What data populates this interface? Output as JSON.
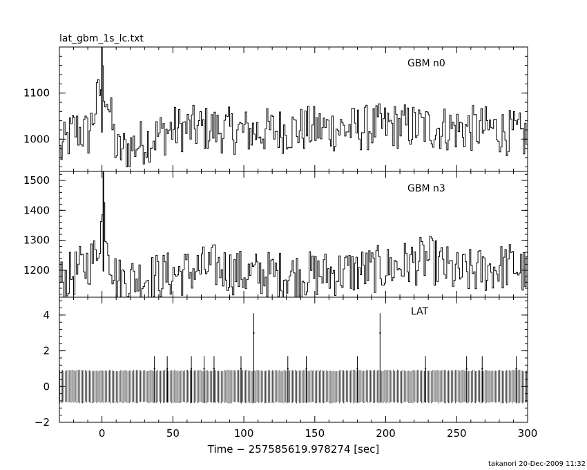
{
  "chart_data": {
    "type": "line",
    "title": "lat_gbm_1s_lc.txt",
    "xlabel": "Time − 257585619.978274 [sec]",
    "footer": "takanori 20-Dec-2009 11:32",
    "x_range": [
      -30,
      300
    ],
    "x_ticks": [
      "0",
      "50",
      "100",
      "150",
      "200",
      "250",
      "300"
    ],
    "x_tick_values": [
      0,
      50,
      100,
      150,
      200,
      250,
      300
    ],
    "panels": [
      {
        "name": "GBM n0",
        "ylim": [
          930,
          1200
        ],
        "y_ticks": [
          "1000",
          "1100"
        ],
        "y_tick_values": [
          1000,
          1100
        ],
        "peak": {
          "x": 0,
          "y": 1200
        },
        "series": [
          {
            "x": -30,
            "y": 960
          },
          {
            "x": -20,
            "y": 1040
          },
          {
            "x": -10,
            "y": 1020
          },
          {
            "x": 0,
            "y": 1200
          },
          {
            "x": 3,
            "y": 1150
          },
          {
            "x": 10,
            "y": 960
          },
          {
            "x": 50,
            "y": 1040
          },
          {
            "x": 75,
            "y": 1040
          },
          {
            "x": 100,
            "y": 1030
          },
          {
            "x": 150,
            "y": 1040
          },
          {
            "x": 175,
            "y": 1040
          },
          {
            "x": 208,
            "y": 1050
          },
          {
            "x": 250,
            "y": 1040
          },
          {
            "x": 275,
            "y": 1040
          },
          {
            "x": 300,
            "y": 1010
          }
        ],
        "baseline": 990
      },
      {
        "name": "GBM n3",
        "ylim": [
          1110,
          1530
        ],
        "y_ticks": [
          "1200",
          "1300",
          "1400",
          "1500"
        ],
        "y_tick_values": [
          1200,
          1300,
          1400,
          1500
        ],
        "peak": {
          "x": 1,
          "y": 1530
        },
        "series": [
          {
            "x": -30,
            "y": 1160
          },
          {
            "x": -15,
            "y": 1230
          },
          {
            "x": -5,
            "y": 1290
          },
          {
            "x": 1,
            "y": 1530
          },
          {
            "x": 5,
            "y": 1300
          },
          {
            "x": 10,
            "y": 1170
          },
          {
            "x": 50,
            "y": 1200
          },
          {
            "x": 80,
            "y": 1240
          },
          {
            "x": 100,
            "y": 1200
          },
          {
            "x": 150,
            "y": 1200
          },
          {
            "x": 200,
            "y": 1230
          },
          {
            "x": 230,
            "y": 1280
          },
          {
            "x": 250,
            "y": 1200
          },
          {
            "x": 290,
            "y": 1250
          },
          {
            "x": 300,
            "y": 1190
          }
        ],
        "baseline": 1160
      },
      {
        "name": "LAT",
        "ylim": [
          -2,
          5
        ],
        "y_ticks": [
          "−2",
          "0",
          "2",
          "4"
        ],
        "y_tick_values": [
          -2,
          0,
          2,
          4
        ],
        "error_bar": [
          -0.9,
          0.9
        ],
        "events": [
          {
            "x": 107,
            "y": 3
          },
          {
            "x": 196,
            "y": 3
          },
          {
            "x": 37,
            "y": 1
          },
          {
            "x": 46,
            "y": 1
          },
          {
            "x": 63,
            "y": 1
          },
          {
            "x": 72,
            "y": 1
          },
          {
            "x": 79,
            "y": 1
          },
          {
            "x": 98,
            "y": 1
          },
          {
            "x": 131,
            "y": 1
          },
          {
            "x": 144,
            "y": 1
          },
          {
            "x": 180,
            "y": 1
          },
          {
            "x": 228,
            "y": 1
          },
          {
            "x": 257,
            "y": 1
          },
          {
            "x": 268,
            "y": 1
          },
          {
            "x": 292,
            "y": 1
          }
        ]
      }
    ]
  }
}
